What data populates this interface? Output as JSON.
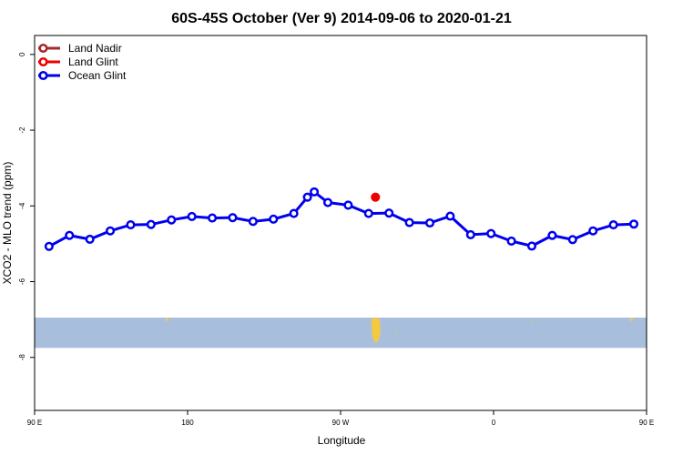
{
  "chart_data": {
    "type": "line",
    "title": "60S-45S October (Ver 9)   2014-09-06 to 2020-01-21",
    "xlabel": "Longitude",
    "ylabel": "XCO2 - MLO trend (ppm)",
    "xlim": [
      90,
      450
    ],
    "ylim": [
      -9.4,
      0.5
    ],
    "x_ticks": [
      {
        "value": 90,
        "label": "90 E"
      },
      {
        "value": 180,
        "label": "180"
      },
      {
        "value": 270,
        "label": "90 W"
      },
      {
        "value": 360,
        "label": "0"
      },
      {
        "value": 450,
        "label": "90 E"
      },
      {
        "value": 540,
        "label": "180"
      }
    ],
    "y_ticks": [
      {
        "value": 0,
        "label": "0"
      },
      {
        "value": -2,
        "label": "-2"
      },
      {
        "value": -4,
        "label": "-4"
      },
      {
        "value": -6,
        "label": "-6"
      },
      {
        "value": -8,
        "label": "-8"
      }
    ],
    "legend_position": "top-left",
    "grid": false,
    "series": [
      {
        "name": "Land Nadir",
        "color": "#a52a2a",
        "points": []
      },
      {
        "name": "Land Glint",
        "color": "#ee0000",
        "points": [
          [
            290.5,
            -3.77
          ]
        ]
      },
      {
        "name": "Ocean Glint",
        "color": "#0000ee",
        "points": [
          [
            98.5,
            -5.07
          ],
          [
            110.5,
            -4.78
          ],
          [
            122.5,
            -4.88
          ],
          [
            134.5,
            -4.66
          ],
          [
            146.5,
            -4.5
          ],
          [
            158.5,
            -4.49
          ],
          [
            170.5,
            -4.37
          ],
          [
            182.5,
            -4.28
          ],
          [
            194.5,
            -4.32
          ],
          [
            206.5,
            -4.31
          ],
          [
            218.5,
            -4.41
          ],
          [
            230.5,
            -4.35
          ],
          [
            242.5,
            -4.2
          ],
          [
            250.5,
            -3.77
          ],
          [
            254.5,
            -3.63
          ],
          [
            262.5,
            -3.91
          ],
          [
            274.5,
            -3.98
          ],
          [
            286.5,
            -4.2
          ],
          [
            298.5,
            -4.19
          ],
          [
            310.5,
            -4.44
          ],
          [
            322.5,
            -4.45
          ],
          [
            334.5,
            -4.27
          ],
          [
            346.5,
            -4.76
          ],
          [
            358.5,
            -4.73
          ],
          [
            370.5,
            -4.93
          ],
          [
            382.5,
            -5.06
          ],
          [
            394.5,
            -4.78
          ],
          [
            406.5,
            -4.89
          ],
          [
            418.5,
            -4.66
          ],
          [
            430.5,
            -4.5
          ],
          [
            442.5,
            -4.48
          ]
        ]
      }
    ],
    "map_band": {
      "ylim": [
        -6.95,
        -7.75
      ],
      "ocean_color": "#a8bedd",
      "land_color": "#f5c842"
    }
  }
}
